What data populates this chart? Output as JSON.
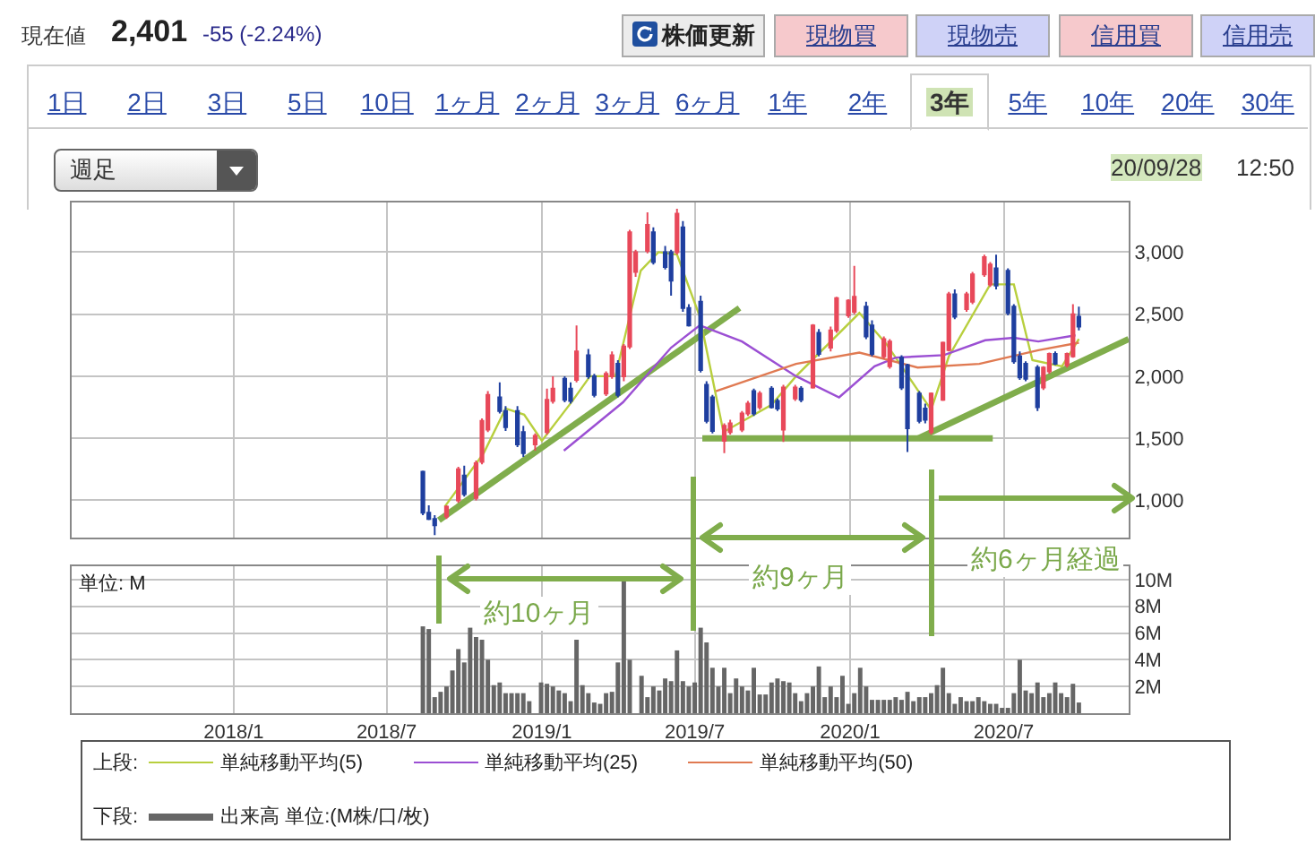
{
  "chart_data": [
    {
      "type": "other",
      "annotations": [
        "現在値",
        "2,401",
        "-55 (-2.24%)",
        "株価更新",
        "現物買",
        "現物売",
        "信用買",
        "信用売",
        "1日",
        "2日",
        "3日",
        "5日",
        "10日",
        "1ヶ月",
        "2ヶ月",
        "3ヶ月",
        "6ヶ月",
        "1年",
        "2年",
        "3年",
        "5年",
        "10年",
        "20年",
        "30年",
        "週足",
        "20/09/28",
        "12:50"
      ]
    },
    {
      "type": "candlestick",
      "tick_labels": "y",
      "grid": true,
      "legend": "bottom",
      "legend_title": "上段:",
      "annotations": [
        "約10ヶ月",
        "約9ヶ月",
        "約6ヶ月経過"
      ],
      "xlim": [
        "2017-06-23",
        "2020-11-26"
      ],
      "xticks": [
        {
          "value": "2018-01-01",
          "label": null
        },
        {
          "value": "2018-07-01",
          "label": null
        },
        {
          "value": "2019-01-01",
          "label": null
        },
        {
          "value": "2019-07-01",
          "label": null
        },
        {
          "value": "2020-01-01",
          "label": null
        },
        {
          "value": "2020-07-01",
          "label": null
        }
      ],
      "ylim": [
        700,
        3400
      ],
      "yticks": [
        {
          "value": 1000,
          "label": "1,000"
        },
        {
          "value": 1500,
          "label": "1,500"
        },
        {
          "value": 2000,
          "label": "2,000"
        },
        {
          "value": 2500,
          "label": "2,500"
        },
        {
          "value": 3000,
          "label": "3,000"
        }
      ],
      "series": [
        {
          "type": "line",
          "color": "#80ad4c",
          "x": [
            "2018-09-01",
            "2019-08-23"
          ],
          "values": [
            840,
            2550
          ]
        },
        {
          "type": "line",
          "color": "#80ad4c",
          "x": [
            "2019-07-10",
            "2020-06-18"
          ],
          "values": [
            1500,
            1500
          ]
        },
        {
          "type": "line",
          "color": "#80ad4c",
          "x": [
            "2020-03-22",
            "2020-11-26"
          ],
          "values": [
            1500,
            2300
          ]
        },
        {
          "type": "line",
          "name": "単純移動平均(5)",
          "color": "#b8cf3e",
          "x": [
            "2018-09-08",
            "2018-10-24",
            "2018-11-19",
            "2018-12-11",
            "2019-01-01",
            "2019-02-06",
            "2019-02-27",
            "2019-03-29",
            "2019-04-28",
            "2019-05-19",
            "2019-06-10",
            "2019-07-07",
            "2019-08-04",
            "2019-09-30",
            "2019-10-29",
            "2020-01-12",
            "2020-02-13",
            "2020-04-06",
            "2020-04-27",
            "2020-06-15",
            "2020-07-13",
            "2020-08-04",
            "2020-09-08",
            "2020-09-28"
          ],
          "values": [
            950,
            1380,
            1740,
            1690,
            1480,
            1800,
            2000,
            2000,
            2850,
            3000,
            2980,
            2480,
            1550,
            1770,
            2000,
            2510,
            2260,
            1730,
            2160,
            2740,
            2740,
            2130,
            2080,
            2300
          ]
        },
        {
          "type": "line",
          "name": "単純移動平均(25)",
          "color": "#9b4fd3",
          "x": [
            "2019-01-27",
            "2019-04-07",
            "2019-06-03",
            "2019-07-07",
            "2019-08-26",
            "2019-10-29",
            "2019-12-19",
            "2020-01-30",
            "2020-02-24",
            "2020-04-21",
            "2020-06-09",
            "2020-07-13",
            "2020-08-11",
            "2020-09-24"
          ],
          "values": [
            1400,
            1790,
            2230,
            2410,
            2280,
            2000,
            1830,
            2080,
            2150,
            2170,
            2290,
            2310,
            2280,
            2330
          ]
        },
        {
          "type": "line",
          "name": "単純移動平均(50)",
          "color": "#e07a52",
          "x": [
            "2019-07-26",
            "2019-10-29",
            "2020-01-12",
            "2020-03-21",
            "2020-06-02",
            "2020-08-11",
            "2020-09-28"
          ],
          "values": [
            1880,
            2100,
            2190,
            2070,
            2100,
            2210,
            2270
          ]
        },
        {
          "type": "candlestick",
          "colors": [
            "#1f3f9f",
            "#1f3f9f",
            "#1f3f9f",
            "#e8495a",
            "#e8495a",
            "#1f3f9f",
            "#e8495a",
            "#e8495a",
            "#e8495a",
            "#1f3f9f",
            "#1f3f9f",
            "#1f3f9f",
            "#1f3f9f",
            "#e8495a",
            "#e8495a",
            "#e8495a",
            "#1f3f9f",
            "#1f3f9f",
            "#e8495a",
            "#1f3f9f",
            "#1f3f9f",
            "#e8495a",
            "#e8495a",
            "#1f3f9f",
            "#e8495a",
            "#e8495a",
            "#e8495a",
            "#e8495a",
            "#1f3f9f",
            "#1f3f9f",
            "#1f3f9f",
            "#e8495a",
            "#1f3f9f",
            "#1f3f9f",
            "#1f3f9f",
            "#1f3f9f",
            "#1f3f9f",
            "#e8495a",
            "#e8495a",
            "#e8495a",
            "#e8495a",
            "#1f3f9f",
            "#e8495a",
            "#1f3f9f",
            "#1f3f9f",
            "#e8495a",
            "#e8495a",
            "#1f3f9f",
            "#e8495a",
            "#1f3f9f",
            "#e8495a",
            "#e8495a",
            "#e8495a",
            "#e8495a",
            "#1f3f9f",
            "#1f3f9f",
            "#e8495a",
            "#e8495a",
            "#1f3f9f",
            "#1f3f9f",
            "#1f3f9f",
            "#1f3f9f",
            "#e8495a",
            "#e8495a",
            "#e8495a",
            "#1f3f9f",
            "#e8495a",
            "#e8495a",
            "#e8495a",
            "#e8495a",
            "#1f3f9f",
            "#1f3f9f",
            "#1f3f9f",
            "#1f3f9f",
            "#1f3f9f",
            "#1f3f9f",
            "#e8495a",
            "#e8495a",
            "#1f3f9f",
            "#e8495a",
            "#e8495a",
            "#1f3f9f"
          ],
          "x": [
            "2018-08-13",
            "2018-08-20",
            "2018-08-27",
            "2018-09-10",
            "2018-09-24",
            "2018-10-01",
            "2018-10-15",
            "2018-10-22",
            "2018-10-29",
            "2018-11-12",
            "2018-11-19",
            "2018-12-03",
            "2018-12-10",
            "2018-12-24",
            "2019-01-07",
            "2019-01-14",
            "2019-01-28",
            "2019-02-04",
            "2019-02-11",
            "2019-02-25",
            "2019-03-04",
            "2019-03-18",
            "2019-03-25",
            "2019-04-01",
            "2019-04-08",
            "2019-04-15",
            "2019-04-22",
            "2019-05-06",
            "2019-05-13",
            "2019-05-27",
            "2019-06-03",
            "2019-06-10",
            "2019-06-17",
            "2019-06-24",
            "2019-07-08",
            "2019-07-15",
            "2019-07-22",
            "2019-08-05",
            "2019-08-12",
            "2019-08-26",
            "2019-09-02",
            "2019-09-09",
            "2019-09-16",
            "2019-09-30",
            "2019-10-07",
            "2019-10-14",
            "2019-10-28",
            "2019-11-04",
            "2019-11-18",
            "2019-11-25",
            "2019-12-09",
            "2019-12-16",
            "2019-12-30",
            "2020-01-06",
            "2020-01-20",
            "2020-01-27",
            "2020-02-10",
            "2020-02-17",
            "2020-03-02",
            "2020-03-09",
            "2020-03-23",
            "2020-03-30",
            "2020-04-06",
            "2020-04-20",
            "2020-04-27",
            "2020-05-04",
            "2020-05-18",
            "2020-05-25",
            "2020-06-08",
            "2020-06-15",
            "2020-06-22",
            "2020-07-06",
            "2020-07-13",
            "2020-07-20",
            "2020-07-27",
            "2020-08-10",
            "2020-08-17",
            "2020-08-24",
            "2020-08-31",
            "2020-09-14",
            "2020-09-21",
            "2020-09-28"
          ],
          "ohlc": [
            [
              1230,
              1240,
              880,
              900
            ],
            [
              900,
              960,
              840,
              850
            ],
            [
              850,
              880,
              720,
              800
            ],
            [
              870,
              960,
              850,
              950
            ],
            [
              1000,
              1270,
              980,
              1250
            ],
            [
              1200,
              1280,
              1030,
              1050
            ],
            [
              1020,
              1320,
              1000,
              1300
            ],
            [
              1310,
              1660,
              1290,
              1640
            ],
            [
              1570,
              1880,
              1550,
              1850
            ],
            [
              1830,
              1950,
              1700,
              1720
            ],
            [
              1720,
              1760,
              1560,
              1590
            ],
            [
              1720,
              1760,
              1430,
              1450
            ],
            [
              1550,
              1600,
              1350,
              1380
            ],
            [
              1450,
              1540,
              1400,
              1520
            ],
            [
              1550,
              1900,
              1530,
              1810
            ],
            [
              1800,
              2000,
              1780,
              1900
            ],
            [
              1980,
              2000,
              1790,
              1810
            ],
            [
              1900,
              1950,
              1780,
              1800
            ],
            [
              1970,
              2410,
              1950,
              2200
            ],
            [
              2170,
              2220,
              1980,
              2000
            ],
            [
              2000,
              2020,
              1830,
              1850
            ],
            [
              1860,
              2040,
              1840,
              2020
            ],
            [
              2000,
              2200,
              1980,
              2170
            ],
            [
              2100,
              2130,
              1830,
              1850
            ],
            [
              2000,
              2260,
              1960,
              2240
            ],
            [
              2240,
              3180,
              2220,
              3160
            ],
            [
              2840,
              3020,
              2800,
              3000
            ],
            [
              3010,
              3320,
              2990,
              3220
            ],
            [
              3160,
              3200,
              2900,
              2920
            ],
            [
              3000,
              3050,
              2860,
              2880
            ],
            [
              3000,
              3020,
              2650,
              2770
            ],
            [
              3000,
              3350,
              2980,
              3310
            ],
            [
              3200,
              3250,
              2520,
              2550
            ],
            [
              2550,
              2580,
              2400,
              2410
            ],
            [
              2600,
              2650,
              2030,
              2050
            ],
            [
              1930,
              1960,
              1620,
              1640
            ],
            [
              1830,
              1850,
              1540,
              1560
            ],
            [
              1480,
              1620,
              1380,
              1600
            ],
            [
              1550,
              1650,
              1530,
              1620
            ],
            [
              1570,
              1720,
              1550,
              1700
            ],
            [
              1700,
              1800,
              1680,
              1780
            ],
            [
              1880,
              1900,
              1680,
              1700
            ],
            [
              1750,
              1880,
              1730,
              1860
            ],
            [
              1900,
              1920,
              1740,
              1750
            ],
            [
              1800,
              1820,
              1720,
              1740
            ],
            [
              1570,
              1930,
              1470,
              1910
            ],
            [
              1820,
              1930,
              1800,
              1910
            ],
            [
              1900,
              1920,
              1790,
              1810
            ],
            [
              1910,
              2420,
              1900,
              2410
            ],
            [
              2350,
              2380,
              2160,
              2180
            ],
            [
              2230,
              2400,
              2200,
              2370
            ],
            [
              2370,
              2640,
              2350,
              2630
            ],
            [
              2490,
              2620,
              2470,
              2610
            ],
            [
              2520,
              2890,
              2500,
              2640
            ],
            [
              2560,
              2600,
              2300,
              2320
            ],
            [
              2410,
              2450,
              2160,
              2180
            ],
            [
              2160,
              2320,
              2140,
              2300
            ],
            [
              2080,
              2300,
              2060,
              2280
            ],
            [
              2150,
              2170,
              1890,
              1910
            ],
            [
              2090,
              2100,
              1390,
              1580
            ],
            [
              1860,
              1880,
              1620,
              1640
            ],
            [
              1740,
              1780,
              1620,
              1650
            ],
            [
              1550,
              1870,
              1530,
              1860
            ],
            [
              1810,
              2280,
              1800,
              2270
            ],
            [
              2210,
              2680,
              2200,
              2660
            ],
            [
              2660,
              2700,
              2460,
              2480
            ],
            [
              2540,
              2680,
              2520,
              2660
            ],
            [
              2600,
              2840,
              2580,
              2820
            ],
            [
              2820,
              2980,
              2800,
              2960
            ],
            [
              2740,
              2920,
              2720,
              2900
            ],
            [
              2870,
              2980,
              2700,
              2730
            ],
            [
              2850,
              2870,
              2490,
              2510
            ],
            [
              2560,
              2580,
              2100,
              2120
            ],
            [
              2160,
              2200,
              1970,
              1990
            ],
            [
              2100,
              2120,
              1960,
              1980
            ],
            [
              2070,
              2090,
              1720,
              1750
            ],
            [
              1910,
              2080,
              1890,
              2070
            ],
            [
              2040,
              2190,
              2020,
              2180
            ],
            [
              2180,
              2200,
              2090,
              2100
            ],
            [
              2090,
              2190,
              2070,
              2180
            ],
            [
              2160,
              2580,
              2150,
              2500
            ],
            [
              2480,
              2560,
              2370,
              2401
            ]
          ]
        }
      ]
    },
    {
      "type": "bar",
      "grid": true,
      "legend": "bottom",
      "legend_title": "下段:",
      "annotations": [
        "単位: M"
      ],
      "xlim": [
        "2017-06-23",
        "2020-11-26"
      ],
      "xticks": [
        {
          "value": "2018-01-01",
          "label": "2018/1"
        },
        {
          "value": "2018-07-01",
          "label": "2018/7"
        },
        {
          "value": "2019-01-01",
          "label": "2019/1"
        },
        {
          "value": "2019-07-01",
          "label": "2019/7"
        },
        {
          "value": "2020-01-01",
          "label": "2020/1"
        },
        {
          "value": "2020-07-01",
          "label": "2020/7"
        }
      ],
      "ylim": [
        0,
        11
      ],
      "yticks": [
        {
          "value": 2,
          "label": "2M"
        },
        {
          "value": 4,
          "label": "4M"
        },
        {
          "value": 6,
          "label": "6M"
        },
        {
          "value": 8,
          "label": "8M"
        },
        {
          "value": 10,
          "label": "10M"
        }
      ],
      "x": [
        "2018-08-13",
        "2018-08-20",
        "2018-08-27",
        "2018-09-03",
        "2018-09-10",
        "2018-09-17",
        "2018-09-24",
        "2018-10-01",
        "2018-10-08",
        "2018-10-15",
        "2018-10-22",
        "2018-10-29",
        "2018-11-05",
        "2018-11-12",
        "2018-11-19",
        "2018-11-26",
        "2018-12-03",
        "2018-12-10",
        "2018-12-17",
        "2018-12-24",
        "2018-12-31",
        "2019-01-07",
        "2019-01-14",
        "2019-01-21",
        "2019-01-28",
        "2019-02-04",
        "2019-02-11",
        "2019-02-18",
        "2019-02-25",
        "2019-03-04",
        "2019-03-11",
        "2019-03-18",
        "2019-03-25",
        "2019-04-01",
        "2019-04-08",
        "2019-04-15",
        "2019-04-22",
        "2019-04-29",
        "2019-05-06",
        "2019-05-13",
        "2019-05-20",
        "2019-05-27",
        "2019-06-03",
        "2019-06-10",
        "2019-06-17",
        "2019-06-24",
        "2019-07-01",
        "2019-07-08",
        "2019-07-15",
        "2019-07-22",
        "2019-07-29",
        "2019-08-05",
        "2019-08-12",
        "2019-08-19",
        "2019-08-26",
        "2019-09-02",
        "2019-09-09",
        "2019-09-16",
        "2019-09-23",
        "2019-09-30",
        "2019-10-07",
        "2019-10-14",
        "2019-10-21",
        "2019-10-28",
        "2019-11-04",
        "2019-11-11",
        "2019-11-18",
        "2019-11-25",
        "2019-12-02",
        "2019-12-09",
        "2019-12-16",
        "2019-12-23",
        "2019-12-30",
        "2020-01-06",
        "2020-01-13",
        "2020-01-20",
        "2020-01-27",
        "2020-02-03",
        "2020-02-10",
        "2020-02-17",
        "2020-02-24",
        "2020-03-02",
        "2020-03-09",
        "2020-03-16",
        "2020-03-23",
        "2020-03-30",
        "2020-04-06",
        "2020-04-13",
        "2020-04-20",
        "2020-04-27",
        "2020-05-04",
        "2020-05-11",
        "2020-05-18",
        "2020-05-25",
        "2020-06-01",
        "2020-06-08",
        "2020-06-15",
        "2020-06-22",
        "2020-06-29",
        "2020-07-06",
        "2020-07-13",
        "2020-07-20",
        "2020-07-27",
        "2020-08-03",
        "2020-08-10",
        "2020-08-17",
        "2020-08-24",
        "2020-08-31",
        "2020-09-07",
        "2020-09-14",
        "2020-09-21",
        "2020-09-28"
      ],
      "series": [
        {
          "name": "出来高 単位:(M株/口/枚)",
          "color": "#666666",
          "values": [
            6.5,
            6.3,
            1.2,
            1.6,
            2.0,
            3.2,
            4.8,
            3.8,
            6.4,
            5.7,
            5.5,
            4.0,
            2.1,
            2.3,
            1.5,
            1.5,
            1.5,
            1.5,
            0.9,
            null,
            2.3,
            2.2,
            2.0,
            1.7,
            1.5,
            0.9,
            5.5,
            2.1,
            1.5,
            0.8,
            0.7,
            1.5,
            1.6,
            3.8,
            9.9,
            4.0,
            null,
            2.8,
            1.2,
            2.0,
            1.7,
            2.6,
            2.4,
            4.7,
            2.4,
            2.0,
            2.3,
            6.4,
            5.3,
            3.4,
            2.0,
            3.4,
            1.5,
            2.6,
            2.0,
            1.7,
            3.4,
            1.4,
            1.4,
            2.3,
            2.6,
            2.4,
            2.3,
            1.5,
            0.9,
            1.5,
            2.0,
            3.5,
            1.2,
            2.0,
            1.2,
            2.8,
            0.7,
            1.5,
            3.4,
            2.0,
            1.0,
            1.0,
            1.0,
            1.0,
            1.2,
            1.0,
            1.6,
            0.9,
            1.2,
            1.2,
            1.5,
            2.1,
            3.4,
            1.5,
            0.7,
            1.2,
            0.9,
            0.9,
            1.2,
            0.9,
            0.7,
            0.7,
            0.4,
            0.4,
            1.5,
            4.0,
            1.7,
            1.5,
            2.3,
            1.2,
            1.5,
            2.3,
            1.5,
            1.2,
            2.2,
            0.8
          ]
        }
      ]
    }
  ]
}
